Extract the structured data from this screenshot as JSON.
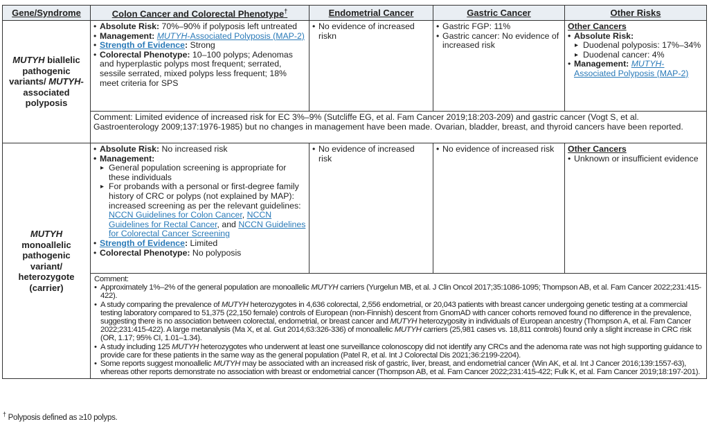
{
  "headers": {
    "gene": "Gene/Syndrome",
    "colon": "Colon Cancer and Colorectal Phenotype",
    "colon_mark": "†",
    "endometrial": "Endometrial Cancer",
    "gastric": "Gastric Cancer",
    "other": "Other Risks"
  },
  "row1": {
    "gene": [
      {
        "t": "MUTYH",
        "s": "i"
      },
      {
        "t": " biallelic pathogenic variants/ "
      },
      {
        "t": "MUTYH",
        "s": "i"
      },
      {
        "t": "-associated polyposis"
      }
    ],
    "colon": [
      [
        {
          "t": "Absolute Risk:",
          "s": "b"
        },
        {
          "t": " 70%–90% if polyposis left untreated"
        }
      ],
      [
        {
          "t": "Management:",
          "s": "b"
        },
        {
          "t": " "
        },
        {
          "t": "MUTYH",
          "s": "i link"
        },
        {
          "t": "-Associated Polyposis (MAP-2)",
          "s": "link"
        }
      ],
      [
        {
          "t": "Strength of Evidence",
          "s": "b link"
        },
        {
          "t": ":",
          "s": "b"
        },
        {
          "t": " Strong"
        }
      ],
      [
        {
          "t": "Colorectal Phenotype:",
          "s": "b"
        },
        {
          "t": " 10–100 polyps; Adenomas and hyperplastic polyps most frequent; serrated, sessile serrated, mixed polyps less frequent; 18% meet criteria for SPS"
        }
      ]
    ],
    "endometrial": [
      "No evidence of increased riskn"
    ],
    "gastric": [
      "Gastric FGP: 11%",
      "Gastric cancer: No evidence of increased risk"
    ],
    "other": {
      "heading": "Other Cancers",
      "absolute_label": "Absolute Risk:",
      "absolute_items": [
        "Duodenal polyposis: 17%–34%",
        "Duodenal cancer: 4%"
      ],
      "management": [
        {
          "t": "Management:",
          "s": "b"
        },
        {
          "t": " "
        },
        {
          "t": "MUTYH",
          "s": "i link"
        },
        {
          "t": "-Associated Polyposis (MAP-2)",
          "s": "link"
        }
      ]
    },
    "comment": "Comment: Limited evidence of increased risk for EC 3%–9% (Sutcliffe EG, et al. Fam Cancer 2019;18:203-209) and gastric cancer (Vogt S, et al. Gastroenterology 2009;137:1976-1985) but no changes in management have been made. Ovarian, bladder, breast, and thyroid cancers have been reported."
  },
  "row2": {
    "gene": [
      {
        "t": "MUTYH",
        "s": "i"
      },
      {
        "t": " monoallelic pathogenic variant/ heterozygote (carrier)"
      }
    ],
    "colon": {
      "absolute": [
        {
          "t": "Absolute Risk:",
          "s": "b"
        },
        {
          "t": " No increased risk"
        }
      ],
      "management_label": "Management:",
      "management_items": [
        [
          {
            "t": "General population screening is appropriate for these individuals"
          }
        ],
        [
          {
            "t": "For probands with a personal or first-degree family history of CRC or polyps (not explained by MAP): increased screening as per the relevant guidelines: "
          },
          {
            "t": "NCCN Guidelines for Colon Cancer",
            "s": "link"
          },
          {
            "t": ", "
          },
          {
            "t": "NCCN Guidelines for Rectal Cancer",
            "s": "link"
          },
          {
            "t": ", and "
          },
          {
            "t": "NCCN Guidelines for Colorectal Cancer Screening",
            "s": "link"
          }
        ]
      ],
      "strength": [
        {
          "t": "Strength of Evidence",
          "s": "b link"
        },
        {
          "t": ":",
          "s": "b"
        },
        {
          "t": " Limited"
        }
      ],
      "phenotype": [
        {
          "t": "Colorectal Phenotype:",
          "s": "b"
        },
        {
          "t": " No polyposis"
        }
      ]
    },
    "endometrial": [
      "No evidence of increased risk"
    ],
    "gastric": [
      "No evidence of increased risk"
    ],
    "other": {
      "heading": "Other Cancers",
      "items": [
        "Unknown or insufficient evidence"
      ]
    },
    "comment_label": "Comment:",
    "comment_items": [
      [
        {
          "t": "Approximately 1%–2% of the general population are monoallelic "
        },
        {
          "t": "MUTYH",
          "s": "i"
        },
        {
          "t": " carriers (Yurgelun MB, et al. J Clin Oncol 2017;35:1086-1095; Thompson AB, et al. Fam Cancer 2022;231:415-422)."
        }
      ],
      [
        {
          "t": "A study comparing the prevalence of "
        },
        {
          "t": "MUTYH",
          "s": "i"
        },
        {
          "t": " heterozygotes in 4,636 colorectal, 2,556 endometrial, or 20,043 patients with breast cancer undergoing genetic testing at a commercial testing laboratory compared to 51,375 (22,150 female) controls of European (non-Finnish) descent from GnomAD with cancer cohorts removed found no difference in the prevalence, suggesting there is no association between colorectal, endometrial, or breast cancer and "
        },
        {
          "t": "MUTYH",
          "s": "i"
        },
        {
          "t": " heterozygosity in individuals of European ancestry (Thompson A, et al. Fam Cancer 2022;231:415-422). A large metanalysis (Ma X, et al. Gut 2014;63:326-336) of monoallelic "
        },
        {
          "t": "MUTYH",
          "s": "i"
        },
        {
          "t": " carriers (25,981 cases vs. 18,811 controls) found only a slight increase in CRC risk (OR, 1.17; 95% CI, 1.01–1.34)."
        }
      ],
      [
        {
          "t": "A study including 125 "
        },
        {
          "t": "MUTYH",
          "s": "i"
        },
        {
          "t": " heterozygotes who underwent at least one surveillance colonoscopy did not identify any CRCs and the adenoma rate was not high supporting guidance to provide care for these patients in the same way as the general population (Patel R, et al. Int J Colorectal Dis 2021;36:2199-2204)."
        }
      ],
      [
        {
          "t": "Some reports suggest monoallelic "
        },
        {
          "t": "MUTYH",
          "s": "i"
        },
        {
          "t": " may be associated with an increased risk of gastric, liver, breast, and endometrial cancer (Win AK, et al. Int J Cancer 2016;139:1557-63), whereas other reports demonstrate no association with breast or endometrial cancer (Thompson AB, et al. Fam Cancer 2022;231:415-422; Fulk K, et al. Fam Cancer 2019;18:197-201)."
        }
      ]
    ]
  },
  "footnote": {
    "mark": "†",
    "text": " Polyposis defined as ≥10 polyps."
  },
  "colors": {
    "header_bg": "#e9eef3",
    "link": "#2a7ab8",
    "border": "#333333"
  }
}
